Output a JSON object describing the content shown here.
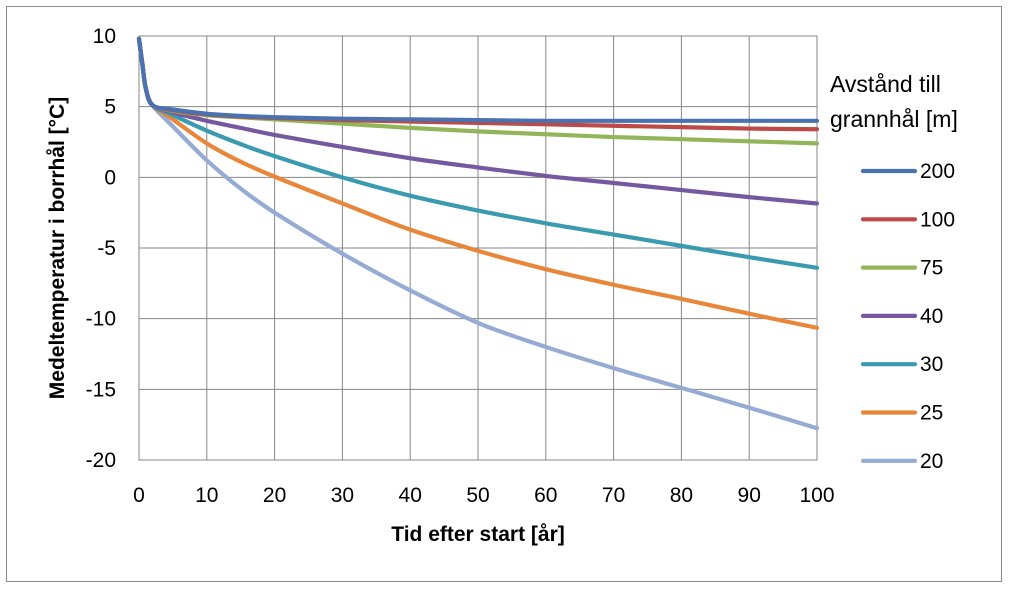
{
  "chart_data": {
    "type": "line",
    "title": "",
    "xlabel": "Tid efter start [år]",
    "ylabel": "Medeltemperatur i borrhål [°C]",
    "xlim": [
      0,
      100
    ],
    "ylim": [
      -20,
      10
    ],
    "xticks": [
      "0",
      "10",
      "20",
      "30",
      "40",
      "50",
      "60",
      "70",
      "80",
      "90",
      "100"
    ],
    "yticks": [
      "10",
      "5",
      "0",
      "-5",
      "-10",
      "-15",
      "-20"
    ],
    "grid": true,
    "legend": {
      "title_line1": "Avstånd till",
      "title_line2": "grannhål [m]",
      "placement": "right"
    },
    "x": [
      0,
      0.5,
      1,
      2,
      5,
      10,
      15,
      20,
      30,
      40,
      50,
      60,
      70,
      80,
      90,
      100
    ],
    "series": [
      {
        "name": "200",
        "color": "#4a72b0",
        "values": [
          9.8,
          8.0,
          6.3,
          5.1,
          4.8,
          4.5,
          4.35,
          4.25,
          4.15,
          4.1,
          4.05,
          4.0,
          4.0,
          4.0,
          4.0,
          4.0
        ]
      },
      {
        "name": "100",
        "color": "#bd4a47",
        "values": [
          9.8,
          8.0,
          6.3,
          5.1,
          4.75,
          4.45,
          4.3,
          4.2,
          4.05,
          3.95,
          3.85,
          3.75,
          3.65,
          3.55,
          3.45,
          3.4
        ]
      },
      {
        "name": "75",
        "color": "#93b55a",
        "values": [
          9.8,
          8.0,
          6.3,
          5.1,
          4.7,
          4.4,
          4.25,
          4.1,
          3.8,
          3.5,
          3.25,
          3.05,
          2.85,
          2.7,
          2.55,
          2.4
        ]
      },
      {
        "name": "40",
        "color": "#7558a0",
        "values": [
          9.8,
          8.0,
          6.3,
          5.1,
          4.6,
          4.0,
          3.5,
          3.0,
          2.15,
          1.35,
          0.7,
          0.1,
          -0.4,
          -0.9,
          -1.4,
          -1.85
        ]
      },
      {
        "name": "30",
        "color": "#3a9bb0",
        "values": [
          9.8,
          8.0,
          6.3,
          5.1,
          4.4,
          3.3,
          2.35,
          1.5,
          0.0,
          -1.3,
          -2.35,
          -3.25,
          -4.05,
          -4.85,
          -5.65,
          -6.4
        ]
      },
      {
        "name": "25",
        "color": "#e8873a",
        "values": [
          9.8,
          8.0,
          6.3,
          5.1,
          4.1,
          2.4,
          1.1,
          0.05,
          -1.85,
          -3.7,
          -5.2,
          -6.5,
          -7.6,
          -8.6,
          -9.65,
          -10.65
        ]
      },
      {
        "name": "20",
        "color": "#95abd3",
        "values": [
          9.8,
          8.0,
          6.3,
          5.1,
          3.6,
          1.2,
          -0.8,
          -2.5,
          -5.4,
          -8.0,
          -10.3,
          -12.0,
          -13.5,
          -14.9,
          -16.3,
          -17.75
        ]
      }
    ]
  }
}
